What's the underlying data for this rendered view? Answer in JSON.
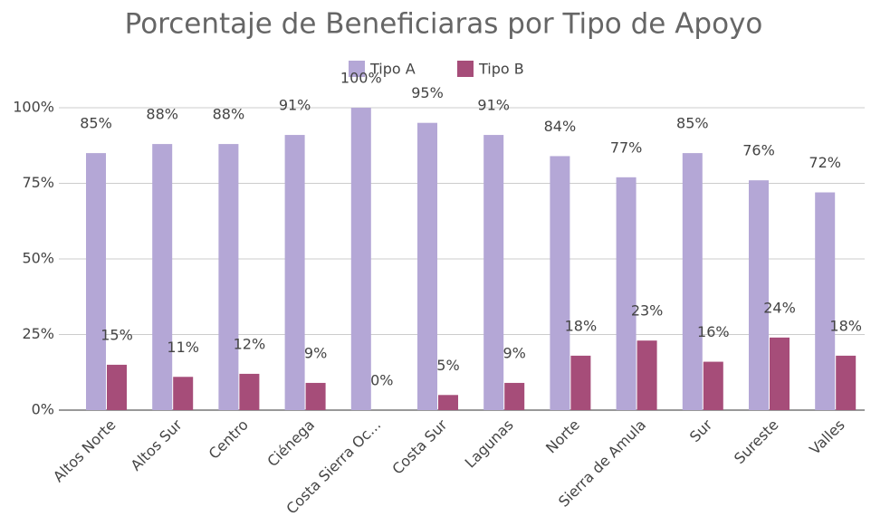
{
  "chart_data": {
    "type": "bar",
    "title": "Porcentaje de Beneficiaras por Tipo de Apoyo",
    "categories": [
      "Altos Norte",
      "Altos Sur",
      "Centro",
      "Ciénega",
      "Costa Sierra Oc...",
      "Costa Sur",
      "Lagunas",
      "Norte",
      "Sierra de Amula",
      "Sur",
      "Sureste",
      "Valles"
    ],
    "series": [
      {
        "name": "Tipo A",
        "color": "#b4a7d6",
        "values": [
          85,
          88,
          88,
          91,
          100,
          95,
          91,
          84,
          77,
          85,
          76,
          72
        ],
        "value_labels": [
          "85%",
          "88%",
          "88%",
          "91%",
          "100%",
          "95%",
          "91%",
          "84%",
          "77%",
          "85%",
          "76%",
          "72%"
        ]
      },
      {
        "name": "Tipo B",
        "color": "#a64d79",
        "values": [
          15,
          11,
          12,
          9,
          0,
          5,
          9,
          18,
          23,
          16,
          24,
          18
        ],
        "value_labels": [
          "15%",
          "11%",
          "12%",
          "9%",
          "0%",
          "5%",
          "9%",
          "18%",
          "23%",
          "16%",
          "24%",
          "18%"
        ]
      }
    ],
    "ylim": [
      0,
      100
    ],
    "yticks": [
      {
        "value": 0,
        "label": "0%"
      },
      {
        "value": 25,
        "label": "25%"
      },
      {
        "value": 50,
        "label": "50%"
      },
      {
        "value": 75,
        "label": "75%"
      },
      {
        "value": 100,
        "label": "100%"
      }
    ],
    "grid": true,
    "legend": "top"
  }
}
